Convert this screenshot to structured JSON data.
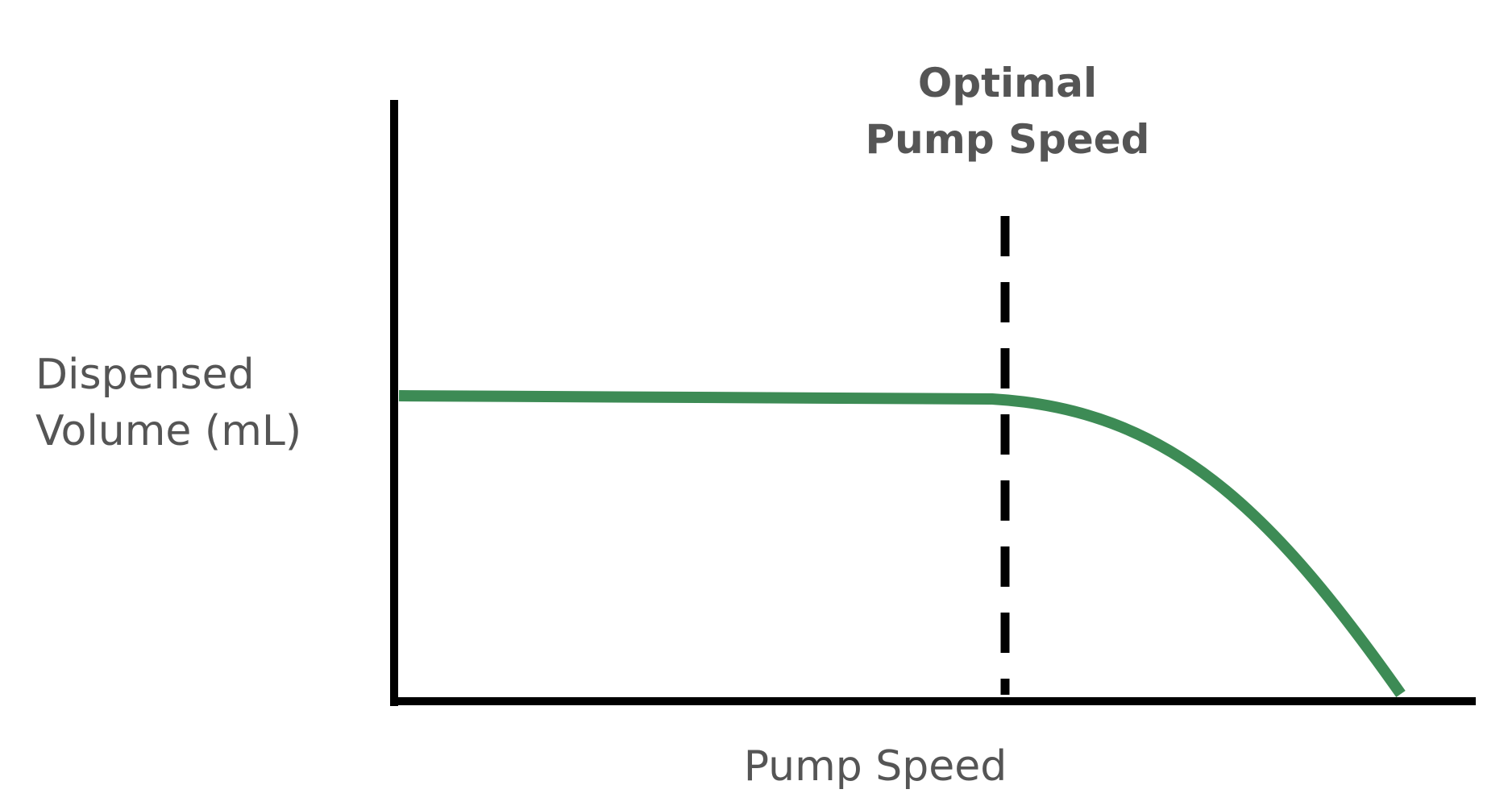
{
  "annotation": {
    "lines": [
      "Optimal",
      "Pump Speed"
    ]
  },
  "axes": {
    "y_label": [
      "Dispensed",
      "Volume (mL)"
    ],
    "x_label": "Pump Speed"
  }
}
